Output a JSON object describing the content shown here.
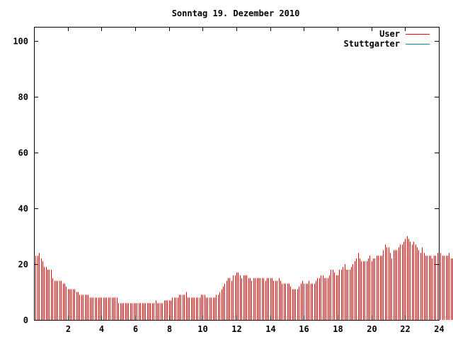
{
  "chart_data": {
    "type": "bar",
    "title": "Sonntag 19. Dezember 2010",
    "xlabel": "",
    "ylabel": "",
    "xlim": [
      0,
      24
    ],
    "ylim": [
      0,
      105
    ],
    "x_ticks": [
      2,
      4,
      6,
      8,
      10,
      12,
      14,
      16,
      18,
      20,
      22,
      24
    ],
    "x_tick_labels": [
      "2",
      "4",
      "6",
      "8",
      "10",
      "12",
      "14",
      "16",
      "18",
      "20",
      "22",
      "24"
    ],
    "y_ticks": [
      0,
      20,
      40,
      60,
      80,
      100
    ],
    "y_tick_labels": [
      "0",
      "20",
      "40",
      "60",
      "80",
      "100"
    ],
    "grid": false,
    "legend_position": "top-right",
    "series": [
      {
        "name": "User",
        "color": "#ff0000",
        "sample_interval_hours": 0.1,
        "values": [
          22,
          23,
          23,
          24,
          22,
          21,
          19,
          19,
          18,
          18,
          18,
          15,
          14,
          14,
          14,
          14,
          14,
          13,
          13,
          12,
          11,
          11,
          11,
          11,
          11,
          10,
          10,
          9,
          9,
          9,
          9,
          9,
          9,
          8,
          8,
          8,
          8,
          8,
          8,
          8,
          8,
          8,
          8,
          8,
          8,
          8,
          8,
          8,
          8,
          8,
          6,
          6,
          6,
          6,
          6,
          6,
          6,
          6,
          6,
          6,
          6,
          6,
          6,
          6,
          6,
          6,
          6,
          6,
          6,
          6,
          6,
          6,
          7,
          6,
          6,
          6,
          6,
          7,
          7,
          7,
          7,
          7,
          8,
          8,
          8,
          8,
          9,
          9,
          9,
          9,
          10,
          8,
          8,
          8,
          8,
          8,
          8,
          8,
          8,
          9,
          9,
          9,
          8,
          8,
          8,
          8,
          8,
          8,
          9,
          9,
          10,
          11,
          12,
          13,
          14,
          15,
          15,
          14,
          16,
          16,
          17,
          17,
          16,
          15,
          16,
          16,
          16,
          15,
          15,
          14,
          15,
          15,
          15,
          15,
          15,
          15,
          15,
          14,
          15,
          15,
          15,
          15,
          14,
          14,
          14,
          15,
          14,
          13,
          13,
          13,
          13,
          13,
          12,
          11,
          11,
          11,
          11,
          12,
          13,
          14,
          13,
          13,
          13,
          14,
          13,
          13,
          13,
          14,
          15,
          15,
          16,
          16,
          15,
          15,
          15,
          16,
          18,
          18,
          17,
          16,
          16,
          18,
          18,
          19,
          20,
          18,
          18,
          18,
          19,
          20,
          21,
          22,
          24,
          22,
          21,
          21,
          21,
          21,
          22,
          23,
          21,
          22,
          22,
          23,
          23,
          23,
          23,
          25,
          27,
          26,
          26,
          24,
          22,
          25,
          25,
          25,
          26,
          27,
          27,
          28,
          29,
          30,
          29,
          28,
          27,
          28,
          27,
          26,
          25,
          24,
          26,
          24,
          23,
          23,
          23,
          23,
          22,
          23,
          23,
          24,
          24,
          24,
          23,
          23,
          23,
          23,
          24,
          22,
          22,
          22,
          21
        ]
      },
      {
        "name": "Stuttgarter",
        "color": "#008b8b",
        "values": []
      }
    ]
  }
}
